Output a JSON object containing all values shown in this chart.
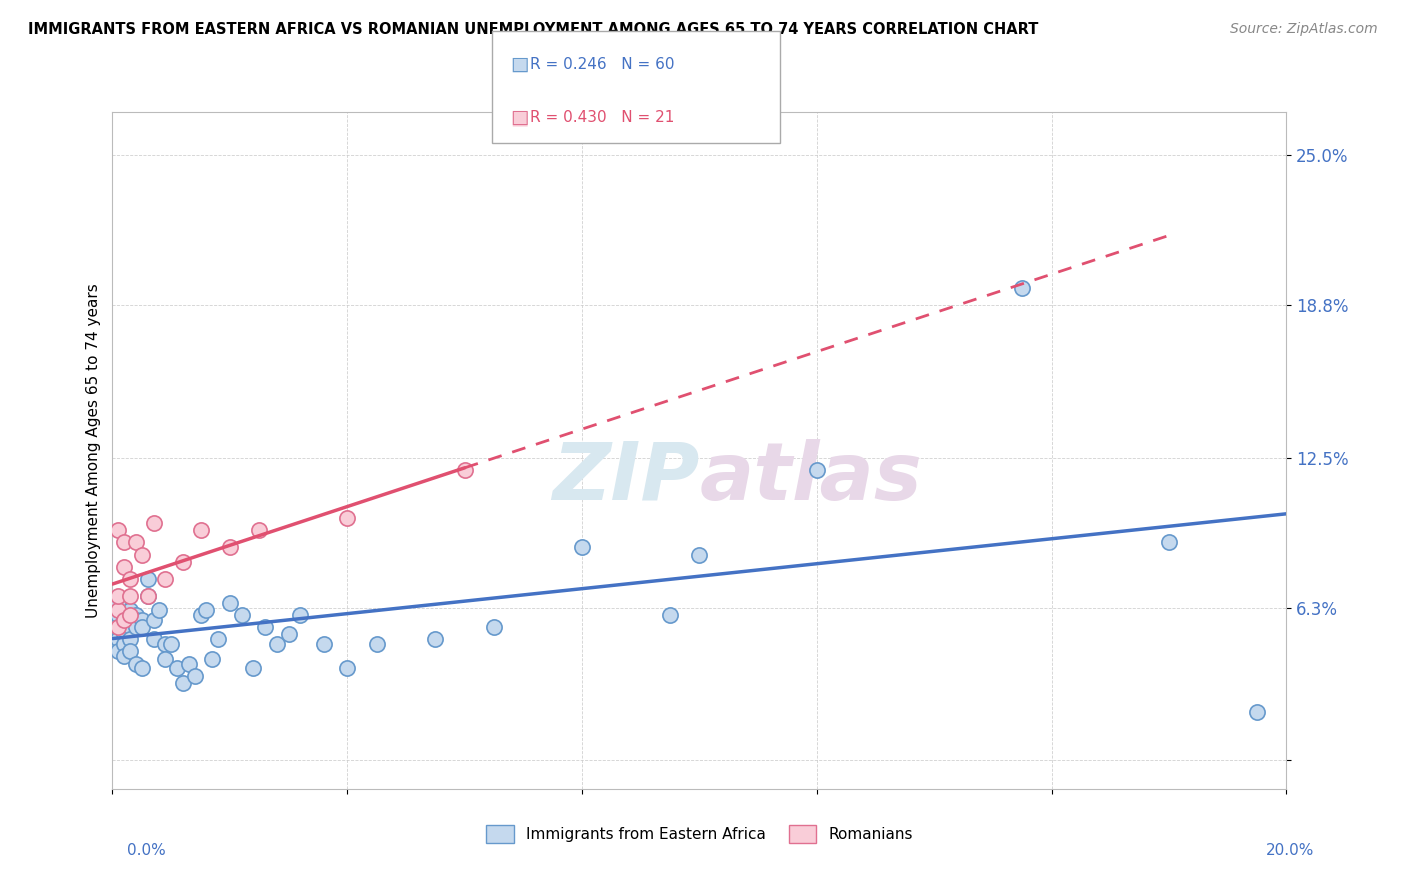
{
  "title": "IMMIGRANTS FROM EASTERN AFRICA VS ROMANIAN UNEMPLOYMENT AMONG AGES 65 TO 74 YEARS CORRELATION CHART",
  "source": "Source: ZipAtlas.com",
  "ylabel": "Unemployment Among Ages 65 to 74 years",
  "yticks": [
    0.0,
    0.063,
    0.125,
    0.188,
    0.25
  ],
  "ytick_labels": [
    "",
    "6.3%",
    "12.5%",
    "18.8%",
    "25.0%"
  ],
  "xlim": [
    0.0,
    0.2
  ],
  "ylim": [
    -0.012,
    0.268
  ],
  "legend1_R": "0.246",
  "legend1_N": "60",
  "legend2_R": "0.430",
  "legend2_N": "21",
  "series1_label": "Immigrants from Eastern Africa",
  "series2_label": "Romanians",
  "series1_color": "#c5d9ee",
  "series1_edge": "#6699cc",
  "series2_color": "#f9cdd8",
  "series2_edge": "#e07090",
  "trendline1_color": "#4472c4",
  "trendline2_color": "#e05070",
  "trendline2_style": "--",
  "watermark_color": "#d8e8f0",
  "series1_x": [
    0.001,
    0.001,
    0.001,
    0.001,
    0.001,
    0.001,
    0.001,
    0.002,
    0.002,
    0.002,
    0.002,
    0.002,
    0.002,
    0.003,
    0.003,
    0.003,
    0.003,
    0.003,
    0.004,
    0.004,
    0.004,
    0.004,
    0.005,
    0.005,
    0.005,
    0.006,
    0.006,
    0.007,
    0.007,
    0.008,
    0.009,
    0.009,
    0.01,
    0.011,
    0.012,
    0.013,
    0.014,
    0.015,
    0.016,
    0.017,
    0.018,
    0.02,
    0.022,
    0.024,
    0.026,
    0.028,
    0.03,
    0.032,
    0.036,
    0.04,
    0.045,
    0.055,
    0.065,
    0.08,
    0.095,
    0.1,
    0.12,
    0.155,
    0.18,
    0.195
  ],
  "series1_y": [
    0.055,
    0.06,
    0.063,
    0.065,
    0.055,
    0.05,
    0.045,
    0.06,
    0.058,
    0.055,
    0.052,
    0.048,
    0.043,
    0.062,
    0.058,
    0.055,
    0.05,
    0.045,
    0.06,
    0.058,
    0.055,
    0.04,
    0.058,
    0.055,
    0.038,
    0.068,
    0.075,
    0.058,
    0.05,
    0.062,
    0.048,
    0.042,
    0.048,
    0.038,
    0.032,
    0.04,
    0.035,
    0.06,
    0.062,
    0.042,
    0.05,
    0.065,
    0.06,
    0.038,
    0.055,
    0.048,
    0.052,
    0.06,
    0.048,
    0.038,
    0.048,
    0.05,
    0.055,
    0.088,
    0.06,
    0.085,
    0.12,
    0.195,
    0.09,
    0.02
  ],
  "series2_x": [
    0.001,
    0.001,
    0.001,
    0.001,
    0.002,
    0.002,
    0.002,
    0.003,
    0.003,
    0.003,
    0.004,
    0.005,
    0.006,
    0.007,
    0.009,
    0.012,
    0.015,
    0.02,
    0.025,
    0.04,
    0.06
  ],
  "series2_y": [
    0.055,
    0.062,
    0.068,
    0.095,
    0.08,
    0.09,
    0.058,
    0.068,
    0.075,
    0.06,
    0.09,
    0.085,
    0.068,
    0.098,
    0.075,
    0.082,
    0.095,
    0.088,
    0.095,
    0.1,
    0.12
  ],
  "trendline1_x0": 0.0,
  "trendline1_x1": 0.2,
  "trendline1_y0": 0.05,
  "trendline1_y1": 0.1,
  "trendline2_x0": 0.0,
  "trendline2_x1": 0.115,
  "trendline2_y0": 0.052,
  "trendline2_y1": 0.132
}
